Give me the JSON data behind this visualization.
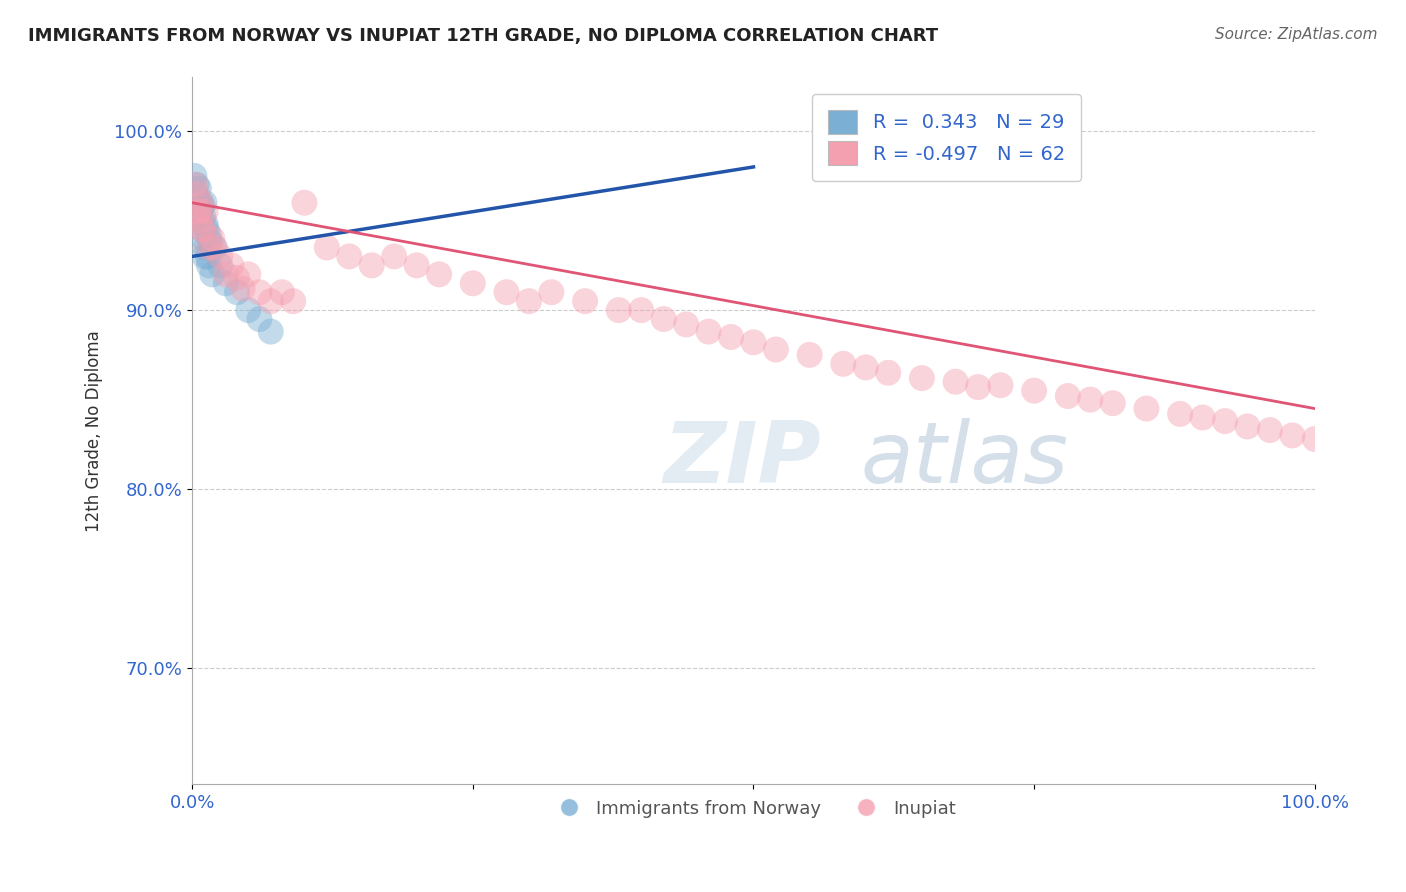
{
  "title": "IMMIGRANTS FROM NORWAY VS INUPIAT 12TH GRADE, NO DIPLOMA CORRELATION CHART",
  "source_text": "Source: ZipAtlas.com",
  "ylabel": "12th Grade, No Diploma",
  "xlim": [
    0.0,
    1.0
  ],
  "ylim": [
    0.635,
    1.03
  ],
  "y_ticks": [
    0.7,
    0.8,
    0.9,
    1.0
  ],
  "y_tick_labels": [
    "70.0%",
    "80.0%",
    "90.0%",
    "100.0%"
  ],
  "legend_entries": [
    {
      "label": "R =  0.343   N = 29",
      "color": "#a8c4e0"
    },
    {
      "label": "R = -0.497   N = 62",
      "color": "#f4a0b0"
    }
  ],
  "blue_color": "#7bafd4",
  "pink_color": "#f4a0b0",
  "blue_line_color": "#2255aa",
  "pink_line_color": "#e05575",
  "watermark_zip": "ZIP",
  "watermark_atlas": "atlas",
  "background_color": "#ffffff",
  "grid_color": "#cccccc",
  "title_color": "#222222",
  "blue_scatter_x": [
    0.002,
    0.003,
    0.004,
    0.005,
    0.006,
    0.007,
    0.008,
    0.008,
    0.009,
    0.009,
    0.01,
    0.01,
    0.011,
    0.011,
    0.012,
    0.012,
    0.013,
    0.014,
    0.015,
    0.015,
    0.016,
    0.018,
    0.02,
    0.025,
    0.03,
    0.04,
    0.05,
    0.06,
    0.07
  ],
  "blue_scatter_y": [
    0.975,
    0.965,
    0.97,
    0.96,
    0.968,
    0.955,
    0.96,
    0.95,
    0.958,
    0.945,
    0.952,
    0.94,
    0.96,
    0.93,
    0.948,
    0.935,
    0.945,
    0.93,
    0.942,
    0.925,
    0.938,
    0.92,
    0.935,
    0.925,
    0.915,
    0.91,
    0.9,
    0.895,
    0.888
  ],
  "pink_scatter_x": [
    0.003,
    0.004,
    0.005,
    0.006,
    0.007,
    0.008,
    0.009,
    0.01,
    0.012,
    0.015,
    0.018,
    0.02,
    0.025,
    0.03,
    0.035,
    0.04,
    0.045,
    0.05,
    0.06,
    0.07,
    0.08,
    0.09,
    0.1,
    0.12,
    0.14,
    0.16,
    0.18,
    0.2,
    0.22,
    0.25,
    0.28,
    0.3,
    0.32,
    0.35,
    0.38,
    0.4,
    0.42,
    0.44,
    0.46,
    0.48,
    0.5,
    0.52,
    0.55,
    0.58,
    0.6,
    0.62,
    0.65,
    0.68,
    0.7,
    0.72,
    0.75,
    0.78,
    0.8,
    0.82,
    0.85,
    0.88,
    0.9,
    0.92,
    0.94,
    0.96,
    0.98,
    1.0
  ],
  "pink_scatter_y": [
    0.97,
    0.965,
    0.955,
    0.955,
    0.95,
    0.96,
    0.945,
    0.945,
    0.955,
    0.935,
    0.94,
    0.935,
    0.93,
    0.92,
    0.925,
    0.918,
    0.912,
    0.92,
    0.91,
    0.905,
    0.91,
    0.905,
    0.96,
    0.935,
    0.93,
    0.925,
    0.93,
    0.925,
    0.92,
    0.915,
    0.91,
    0.905,
    0.91,
    0.905,
    0.9,
    0.9,
    0.895,
    0.892,
    0.888,
    0.885,
    0.882,
    0.878,
    0.875,
    0.87,
    0.868,
    0.865,
    0.862,
    0.86,
    0.857,
    0.858,
    0.855,
    0.852,
    0.85,
    0.848,
    0.845,
    0.842,
    0.84,
    0.838,
    0.835,
    0.833,
    0.83,
    0.828
  ],
  "blue_line_x": [
    0.0,
    0.5
  ],
  "blue_line_y": [
    0.93,
    0.98
  ],
  "pink_line_x": [
    0.0,
    1.0
  ],
  "pink_line_y": [
    0.96,
    0.845
  ]
}
